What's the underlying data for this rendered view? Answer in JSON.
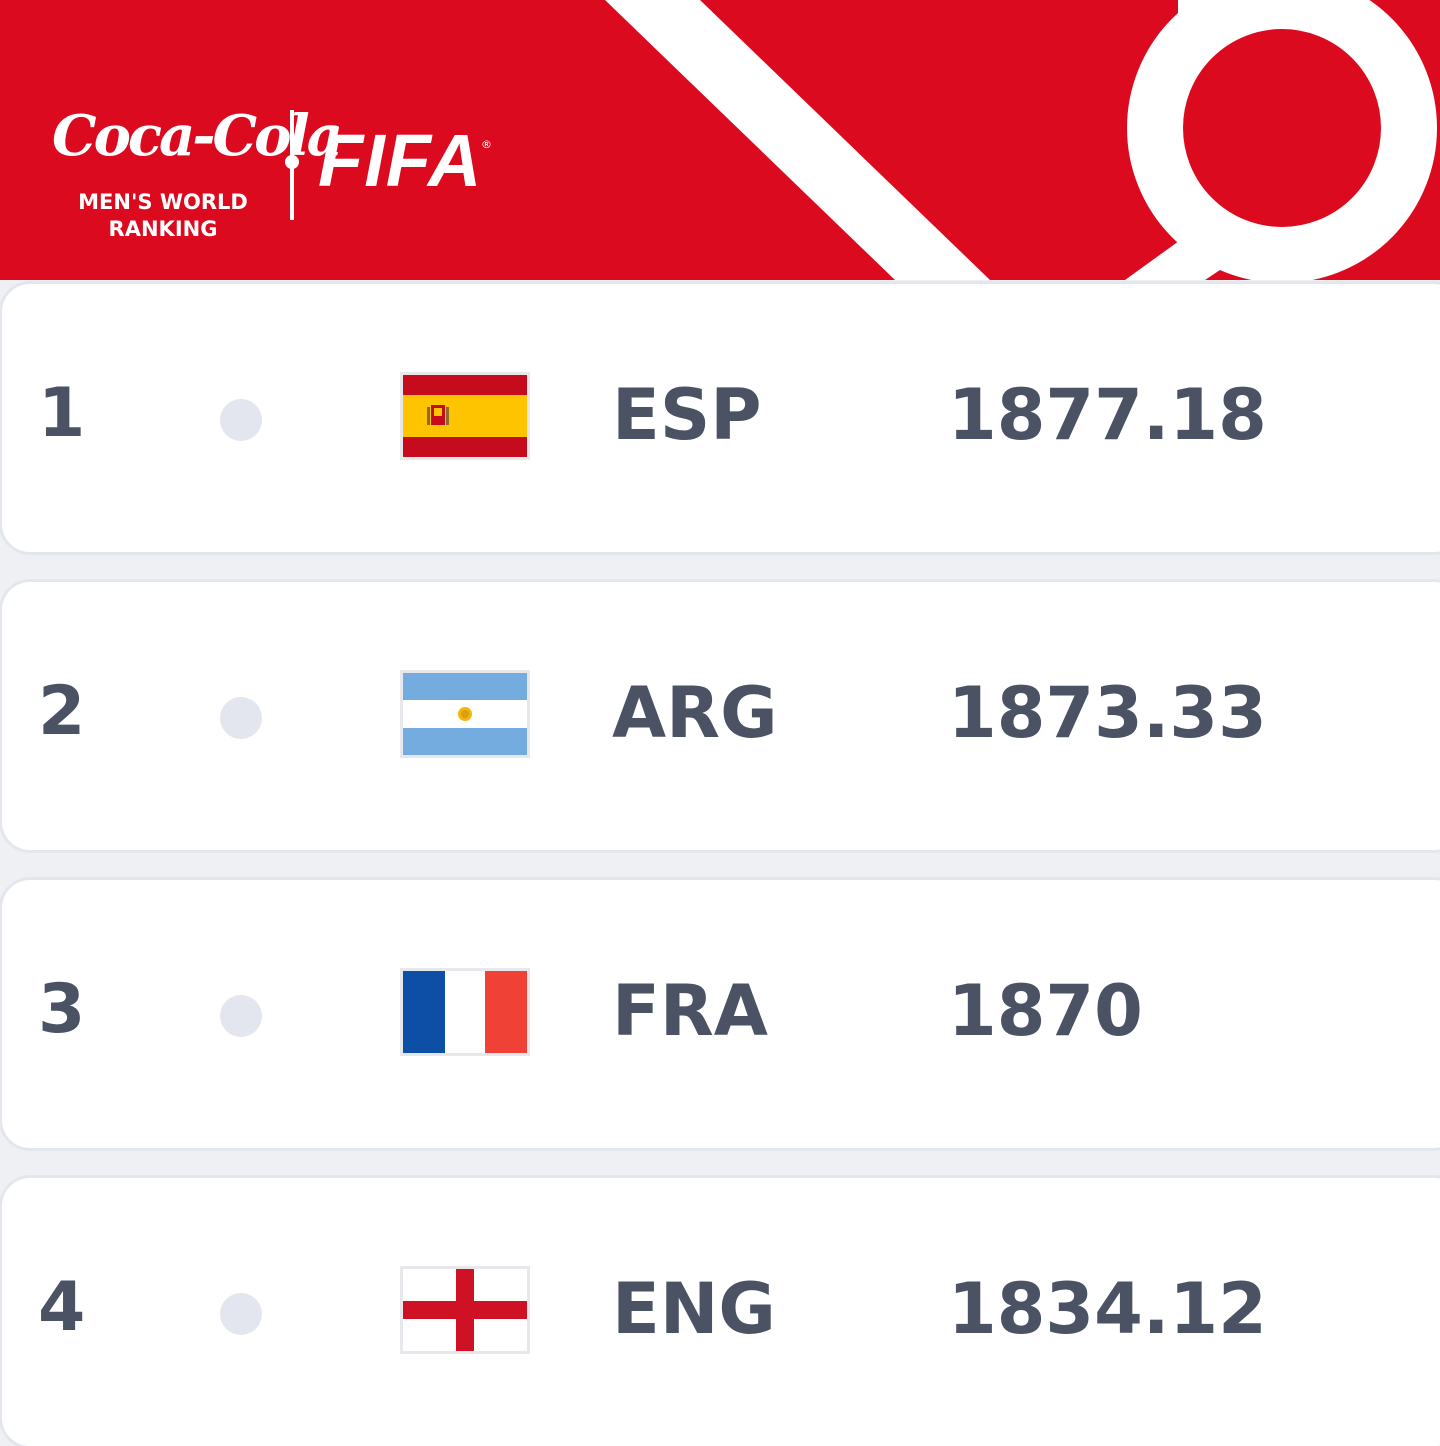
{
  "header": {
    "brand_script": "Coca-Cola",
    "ranking_line1": "MEN'S WORLD",
    "ranking_line2": "RANKING",
    "org": "FIFA",
    "reg_mark": "®",
    "background_color": "#dc0a1f"
  },
  "rankings": [
    {
      "rank": "1",
      "code": "ESP",
      "points": "1877.18",
      "flag_icon": "spain-flag-icon"
    },
    {
      "rank": "2",
      "code": "ARG",
      "points": "1873.33",
      "flag_icon": "argentina-flag-icon"
    },
    {
      "rank": "3",
      "code": "FRA",
      "points": "1870",
      "flag_icon": "france-flag-icon"
    },
    {
      "rank": "4",
      "code": "ENG",
      "points": "1834.12",
      "flag_icon": "england-flag-icon"
    }
  ],
  "colors": {
    "text": "#4a5264",
    "row_bg": "#ffffff",
    "page_bg": "#eef0f4",
    "movement_dot": "#e3e6ee"
  }
}
